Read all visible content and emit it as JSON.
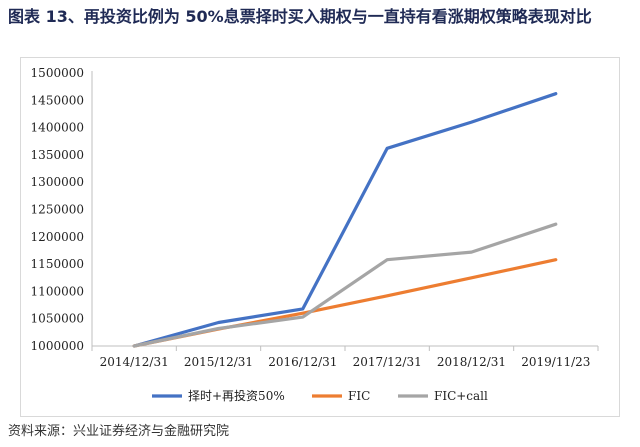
{
  "figure": {
    "title": "图表 13、再投资比例为 50%息票择时买入期权与一直持有看涨期权策略表现对比",
    "source": "资料来源：兴业证券经济与金融研究院"
  },
  "chart_data": {
    "type": "line",
    "title": "",
    "xlabel": "",
    "ylabel": "",
    "categories": [
      "2014/12/31",
      "2015/12/31",
      "2016/12/31",
      "2017/12/31",
      "2018/12/31",
      "2019/11/23"
    ],
    "ylim": [
      1000000,
      1500000
    ],
    "yticks": [
      1000000,
      1050000,
      1100000,
      1150000,
      1200000,
      1250000,
      1300000,
      1350000,
      1400000,
      1450000,
      1500000
    ],
    "grid": false,
    "legend": "bottom",
    "series": [
      {
        "name": "择时+再投资50%",
        "color": "#4472C4",
        "values": [
          1000000,
          1043000,
          1068000,
          1362000,
          1410000,
          1462000
        ]
      },
      {
        "name": "FIC",
        "color": "#ED7D31",
        "values": [
          1000000,
          1031000,
          1060000,
          1092000,
          1125000,
          1158000
        ]
      },
      {
        "name": "FIC+call",
        "color": "#A5A5A5",
        "values": [
          1000000,
          1032000,
          1053000,
          1158000,
          1172000,
          1223000
        ]
      }
    ]
  }
}
